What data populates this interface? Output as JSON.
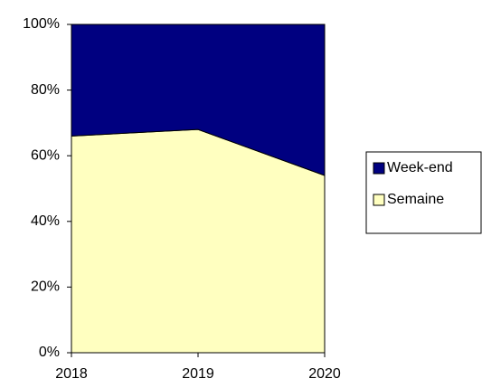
{
  "chart_data": {
    "type": "stacked_area_percent",
    "categories": [
      "2018",
      "2019",
      "2020"
    ],
    "series": [
      {
        "name": "Semaine",
        "color": "#ffffc0",
        "values": [
          66,
          68,
          54
        ]
      },
      {
        "name": "Week-end",
        "color": "#000080",
        "values": [
          34,
          32,
          46
        ]
      }
    ],
    "ylim": [
      0,
      100
    ],
    "yticks": [
      {
        "value": 0,
        "label": "0%"
      },
      {
        "value": 20,
        "label": "20%"
      },
      {
        "value": 40,
        "label": "40%"
      },
      {
        "value": 60,
        "label": "60%"
      },
      {
        "value": 80,
        "label": "80%"
      },
      {
        "value": 100,
        "label": "100%"
      }
    ],
    "legend": "right"
  }
}
